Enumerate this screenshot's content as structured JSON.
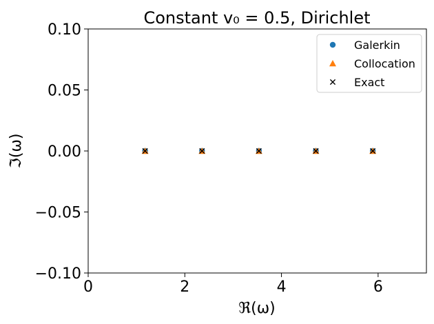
{
  "chart_data": {
    "type": "scatter",
    "title": "Constant v₀ = 0.5, Dirichlet",
    "xlabel": "ℜ(ω)",
    "ylabel": "ℑ(ω)",
    "xlim": [
      0,
      7
    ],
    "ylim": [
      -0.1,
      0.1
    ],
    "xticks": [
      0,
      2,
      4,
      6
    ],
    "xtick_labels": [
      "0",
      "2",
      "4",
      "6"
    ],
    "yticks": [
      0.1,
      0.05,
      0.0,
      -0.05,
      -0.1
    ],
    "ytick_labels": [
      "0.10",
      "0.05",
      "0.00",
      "−0.05",
      "−0.10"
    ],
    "grid": false,
    "legend_position": "top-right",
    "series": [
      {
        "name": "Galerkin",
        "marker": "circle",
        "color": "#1f77b4",
        "points": [
          [
            1.178,
            0.0
          ],
          [
            2.356,
            0.0
          ],
          [
            3.534,
            0.0
          ],
          [
            4.712,
            0.0
          ],
          [
            5.89,
            0.0
          ]
        ]
      },
      {
        "name": "Collocation",
        "marker": "triangle",
        "color": "#ff7f0e",
        "points": [
          [
            1.178,
            0.0
          ],
          [
            2.356,
            0.0
          ],
          [
            3.534,
            0.0
          ],
          [
            4.712,
            0.0
          ],
          [
            5.89,
            0.0
          ]
        ]
      },
      {
        "name": "Exact",
        "marker": "x",
        "color": "#000000",
        "points": [
          [
            1.178,
            0.0
          ],
          [
            2.356,
            0.0
          ],
          [
            3.534,
            0.0
          ],
          [
            4.712,
            0.0
          ],
          [
            5.89,
            0.0
          ]
        ]
      }
    ]
  }
}
